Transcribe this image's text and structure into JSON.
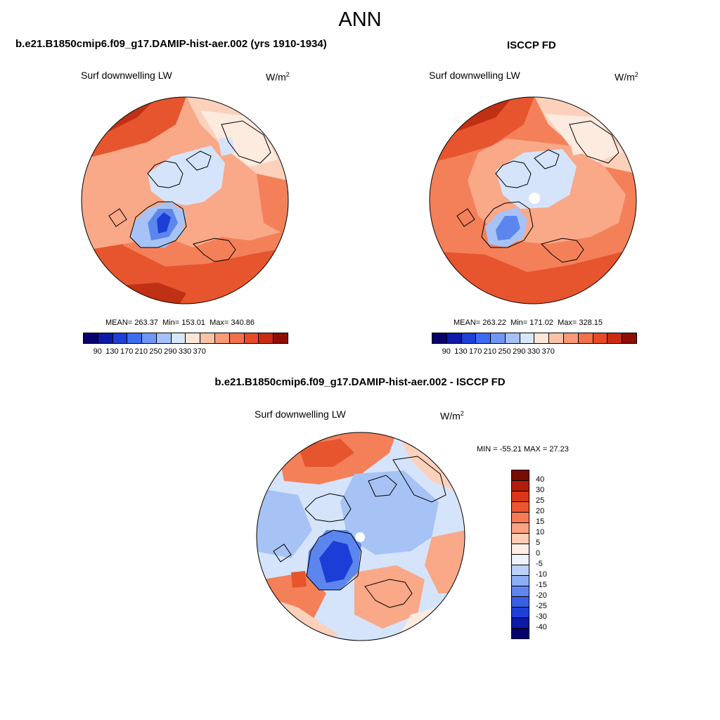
{
  "main_title": "ANN",
  "panels": [
    {
      "title": "b.e21.B1850cmip6.f09_g17.DAMIP-hist-aer.002 (yrs 1910-1934)",
      "variable": "Surf downwelling LW",
      "units": "W/m",
      "units_sup": "2",
      "stats": {
        "mean_label": "MEAN=",
        "mean": "263.37",
        "min_label": "Min=",
        "min": "153.01",
        "max_label": "Max=",
        "max": "340.86"
      }
    },
    {
      "title": "ISCCP FD",
      "variable": "Surf downwelling LW",
      "units": "W/m",
      "units_sup": "2",
      "stats": {
        "mean_label": "MEAN=",
        "mean": "263.22",
        "min_label": "Min=",
        "min": "171.02",
        "max_label": "Max=",
        "max": "328.15"
      }
    },
    {
      "title": "b.e21.B1850cmip6.f09_g17.DAMIP-hist-aer.002 - ISCCP FD",
      "variable": "Surf downwelling LW",
      "units": "W/m",
      "units_sup": "2",
      "minmax_text": "MIN = -55.21 MAX =  27.23"
    }
  ],
  "abs_colorbar": {
    "ticks": [
      "90",
      "130",
      "170",
      "210",
      "250",
      "290",
      "330",
      "370"
    ],
    "colors": [
      "#08006b",
      "#0c1aa5",
      "#1f3fd6",
      "#3d6cf0",
      "#6f96f5",
      "#a5c1f8",
      "#d7e7fb",
      "#fde6d7",
      "#fbc2a8",
      "#f89a78",
      "#f2704a",
      "#e84a25",
      "#c92c12",
      "#8e0d05"
    ]
  },
  "diff_colorbar": {
    "ticks": [
      "40",
      "30",
      "25",
      "20",
      "15",
      "10",
      "5",
      "0",
      "-5",
      "-10",
      "-15",
      "-20",
      "-25",
      "-30",
      "-40"
    ],
    "colors": [
      "#7a0a04",
      "#b21e0b",
      "#d9371a",
      "#ec5530",
      "#f57a55",
      "#f9a282",
      "#fdcdb6",
      "#fdeee3",
      "#edf2fb",
      "#bcd1f7",
      "#8eaef3",
      "#5f86ef",
      "#3760e3",
      "#1f3fd6",
      "#0c1aa5",
      "#050070"
    ]
  },
  "map_colors": {
    "deep_red": "#c03014",
    "red": "#e6552e",
    "orange": "#f4805a",
    "salmon": "#f9a888",
    "peach": "#fcd1bc",
    "pale": "#fdebe0",
    "ice": "#d5e4fa",
    "light_blue": "#a7c3f5",
    "blue": "#5c86ee",
    "dark_blue": "#1d3ed6",
    "white": "#ffffff"
  }
}
